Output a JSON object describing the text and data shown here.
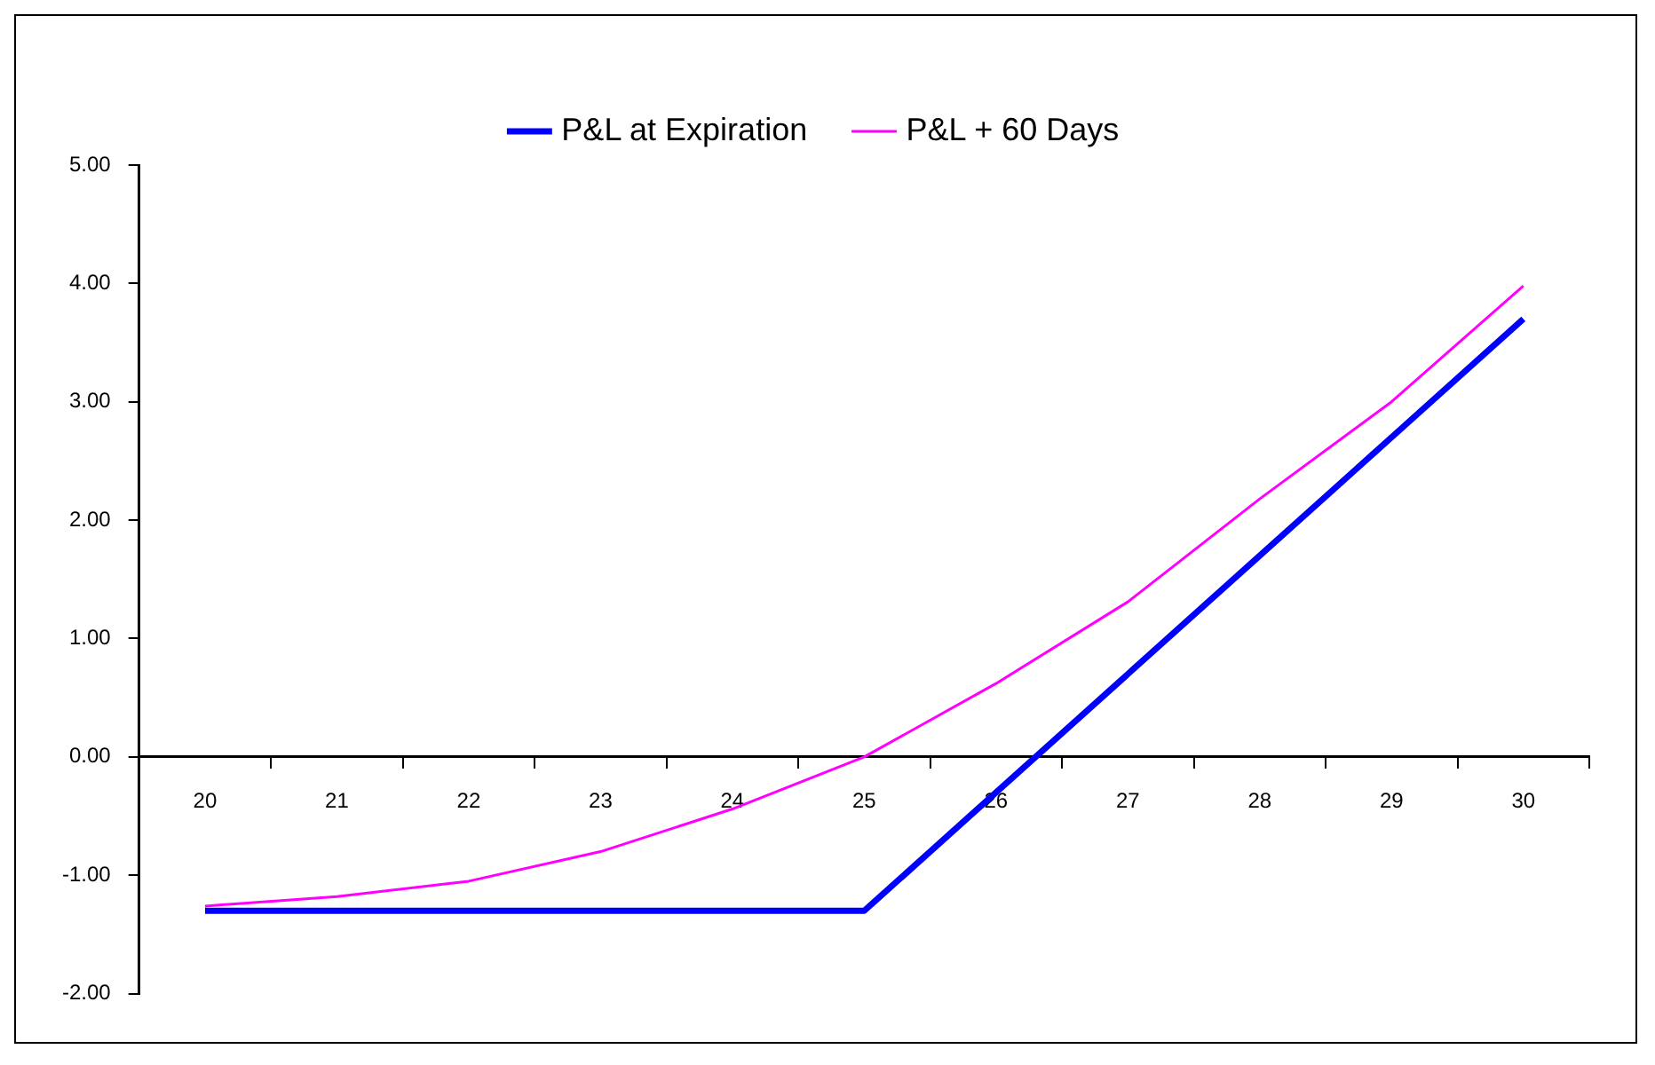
{
  "chart_data": {
    "type": "line",
    "categories": [
      "20",
      "21",
      "22",
      "23",
      "24",
      "25",
      "26",
      "27",
      "28",
      "29",
      "30"
    ],
    "series": [
      {
        "name": "P&L at Expiration",
        "color": "#0000ff",
        "values": [
          -1.3,
          -1.3,
          -1.3,
          -1.3,
          -1.3,
          -1.3,
          -0.3,
          0.7,
          1.7,
          2.7,
          3.7
        ]
      },
      {
        "name": "P&L + 60 Days",
        "color": "#ff00ff",
        "values": [
          -1.26,
          -1.18,
          -1.05,
          -0.8,
          -0.44,
          0.0,
          0.62,
          1.31,
          2.18,
          3.0,
          3.98
        ]
      }
    ],
    "ylim": [
      -2,
      5
    ],
    "yticks": [
      {
        "value": -2,
        "label": "-2.00"
      },
      {
        "value": -1,
        "label": "-1.00"
      },
      {
        "value": 0,
        "label": "0.00"
      },
      {
        "value": 1,
        "label": "1.00"
      },
      {
        "value": 2,
        "label": "2.00"
      },
      {
        "value": 3,
        "label": "3.00"
      },
      {
        "value": 4,
        "label": "4.00"
      },
      {
        "value": 5,
        "label": "5.00"
      }
    ],
    "grid": false,
    "legend": "top",
    "marker": "none",
    "line_style": "solid"
  }
}
